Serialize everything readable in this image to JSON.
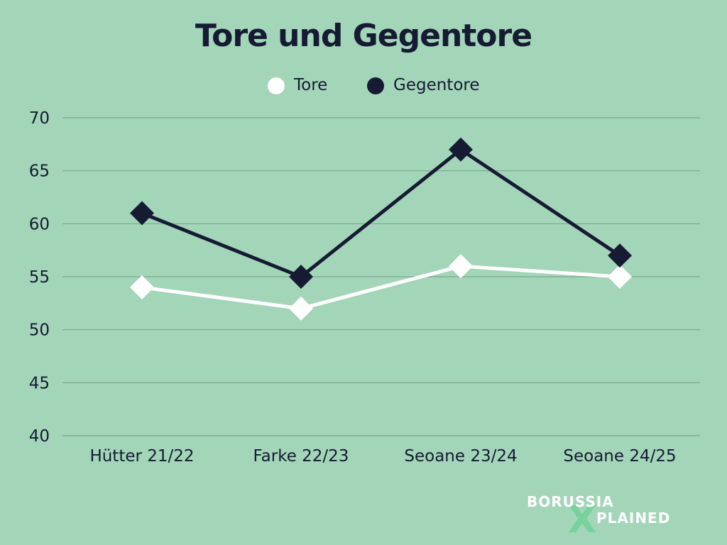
{
  "chart_data": {
    "type": "line",
    "title": "Tore und Gegentore",
    "categories": [
      "Hütter 21/22",
      "Farke 22/23",
      "Seoane 23/24",
      "Seoane 24/25"
    ],
    "series": [
      {
        "name": "Tore",
        "values": [
          54,
          52,
          56,
          55
        ],
        "color": "#ffffff",
        "marker": "diamond"
      },
      {
        "name": "Gegentore",
        "values": [
          61,
          55,
          67,
          57
        ],
        "color": "#161b33",
        "marker": "diamond"
      }
    ],
    "ylim": [
      40,
      70
    ],
    "yticks": [
      40,
      45,
      50,
      55,
      60,
      65,
      70
    ],
    "grid": true,
    "legend": "top-center"
  },
  "colors": {
    "background": "#a3d5b8",
    "gridline": "#7aa98c",
    "text": "#161b33",
    "logo_text": "#ffffff",
    "logo_accent": "#6fd39a"
  },
  "logo": {
    "line1": "BORUSSIA",
    "line2": "PLAINED",
    "mark": "X"
  }
}
